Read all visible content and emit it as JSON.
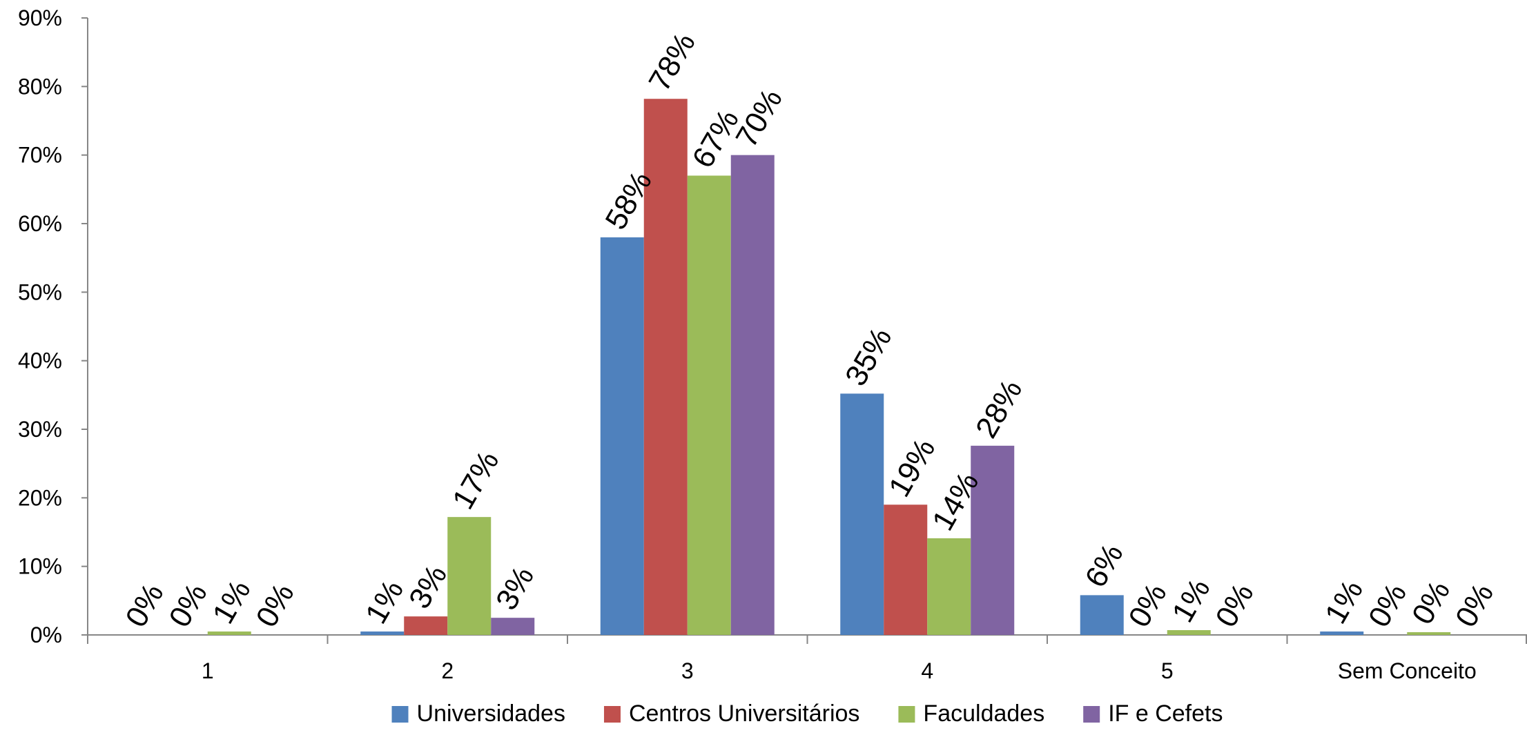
{
  "chart_data": {
    "type": "bar",
    "categories": [
      "1",
      "2",
      "3",
      "4",
      "5",
      "Sem Conceito"
    ],
    "series": [
      {
        "name": "Universidades",
        "color": "#4F81BD",
        "values": [
          0.0,
          0.5,
          58.0,
          35.2,
          5.8,
          0.5
        ],
        "labels": [
          "0%",
          "1%",
          "58%",
          "35%",
          "6%",
          "1%"
        ]
      },
      {
        "name": "Centros Universitários",
        "color": "#C0504D",
        "values": [
          0.0,
          2.7,
          78.2,
          19.0,
          0.0,
          0.0
        ],
        "labels": [
          "0%",
          "3%",
          "78%",
          "19%",
          "0%",
          "0%"
        ]
      },
      {
        "name": "Faculdades",
        "color": "#9BBB59",
        "values": [
          0.5,
          17.2,
          67.0,
          14.1,
          0.7,
          0.4
        ],
        "labels": [
          "1%",
          "17%",
          "67%",
          "14%",
          "1%",
          "0%"
        ]
      },
      {
        "name": "IF e Cefets",
        "color": "#8064A2",
        "values": [
          0.0,
          2.5,
          70.0,
          27.6,
          0.0,
          0.0
        ],
        "labels": [
          "0%",
          "3%",
          "70%",
          "28%",
          "0%",
          "0%"
        ]
      }
    ],
    "ylim": [
      0,
      90
    ],
    "yticks": [
      "0%",
      "10%",
      "20%",
      "30%",
      "40%",
      "50%",
      "60%",
      "70%",
      "80%",
      "90%"
    ],
    "grid": false,
    "legend_position": "bottom",
    "data_label_rotation": -60
  }
}
